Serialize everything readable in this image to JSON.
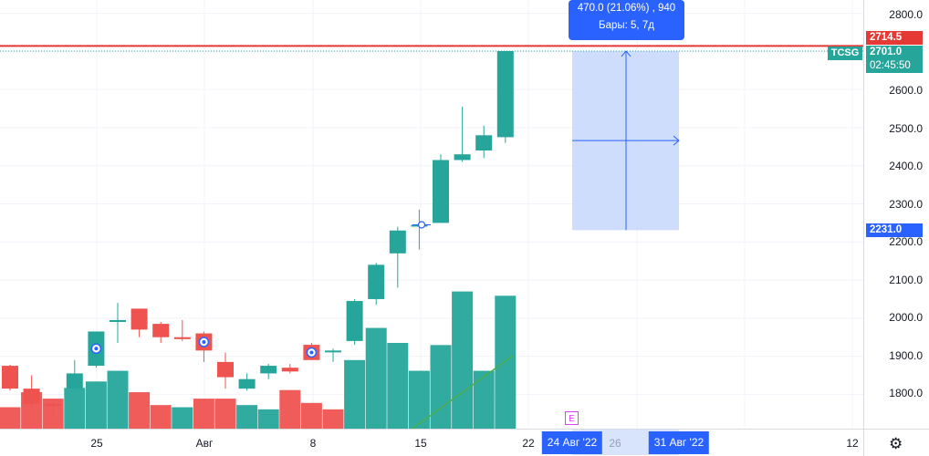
{
  "chart": {
    "symbol": "TCSG",
    "colors": {
      "up": "#26a69a",
      "down": "#ef5350",
      "alert_line": "#e53935",
      "measure": "#2962ff",
      "measure_fill": "#c7d7fb",
      "grid": "#f0f3fa"
    },
    "price_axis": {
      "min": 1710,
      "max": 2835,
      "ticks": [
        "2800.0",
        "2600.0",
        "2500.0",
        "2400.0",
        "2300.0",
        "2200.0",
        "2100.0",
        "2000.0",
        "1900.0",
        "1800.0"
      ],
      "alert_price": "2714.5",
      "last_price": "2701.0",
      "countdown": "02:45:50",
      "measure_low": "2231.0"
    },
    "time_axis": {
      "ticks": [
        "25",
        "Авг",
        "8",
        "15",
        "22",
        "26",
        "12"
      ],
      "cursor_label_1": "24 Авг '22",
      "cursor_label_2": "31 Авг '22"
    },
    "tooltip": {
      "line1": "470.0 (21.06%) , 940",
      "line2": "Бары: 5, 7д"
    },
    "earnings_marker": "E",
    "settings_icon": "gear-icon",
    "chart_data": {
      "type": "candlestick",
      "candles": [
        {
          "o": 1875,
          "h": 1878,
          "l": 1810,
          "c": 1815
        },
        {
          "o": 1815,
          "h": 1850,
          "l": 1765,
          "c": 1775
        },
        {
          "o": 1775,
          "h": 1780,
          "l": 1750,
          "c": 1770
        },
        {
          "o": 1815,
          "h": 1890,
          "l": 1810,
          "c": 1855
        },
        {
          "o": 1875,
          "h": 1965,
          "l": 1870,
          "c": 1965
        },
        {
          "o": 1990,
          "h": 2040,
          "l": 1935,
          "c": 1995
        },
        {
          "o": 2025,
          "h": 2025,
          "l": 1950,
          "c": 1970
        },
        {
          "o": 1985,
          "h": 1990,
          "l": 1935,
          "c": 1950
        },
        {
          "o": 1950,
          "h": 1995,
          "l": 1940,
          "c": 1945
        },
        {
          "o": 1960,
          "h": 1965,
          "l": 1885,
          "c": 1915
        },
        {
          "o": 1885,
          "h": 1910,
          "l": 1815,
          "c": 1845
        },
        {
          "o": 1815,
          "h": 1855,
          "l": 1810,
          "c": 1840
        },
        {
          "o": 1855,
          "h": 1880,
          "l": 1840,
          "c": 1875
        },
        {
          "o": 1870,
          "h": 1880,
          "l": 1855,
          "c": 1860
        },
        {
          "o": 1930,
          "h": 1935,
          "l": 1890,
          "c": 1890
        },
        {
          "o": 1915,
          "h": 1920,
          "l": 1885,
          "c": 1915
        },
        {
          "o": 1940,
          "h": 2050,
          "l": 1930,
          "c": 2045
        },
        {
          "o": 2050,
          "h": 2145,
          "l": 2035,
          "c": 2140
        },
        {
          "o": 2170,
          "h": 2240,
          "l": 2080,
          "c": 2230
        },
        {
          "o": 2245,
          "h": 2285,
          "l": 2180,
          "c": 2245
        },
        {
          "o": 2250,
          "h": 2430,
          "l": 2250,
          "c": 2415
        },
        {
          "o": 2415,
          "h": 2555,
          "l": 2410,
          "c": 2430
        },
        {
          "o": 2440,
          "h": 2505,
          "l": 2420,
          "c": 2480
        },
        {
          "o": 2475,
          "h": 2701,
          "l": 2460,
          "c": 2701
        }
      ],
      "volumes": [
        {
          "v": 0.1,
          "d": "down"
        },
        {
          "v": 0.17,
          "d": "down"
        },
        {
          "v": 0.14,
          "d": "down"
        },
        {
          "v": 0.19,
          "d": "up"
        },
        {
          "v": 0.22,
          "d": "up"
        },
        {
          "v": 0.27,
          "d": "up"
        },
        {
          "v": 0.17,
          "d": "down"
        },
        {
          "v": 0.11,
          "d": "down"
        },
        {
          "v": 0.1,
          "d": "up"
        },
        {
          "v": 0.14,
          "d": "down"
        },
        {
          "v": 0.14,
          "d": "down"
        },
        {
          "v": 0.11,
          "d": "up"
        },
        {
          "v": 0.09,
          "d": "up"
        },
        {
          "v": 0.18,
          "d": "down"
        },
        {
          "v": 0.12,
          "d": "down"
        },
        {
          "v": 0.09,
          "d": "down"
        },
        {
          "v": 0.32,
          "d": "up"
        },
        {
          "v": 0.47,
          "d": "up"
        },
        {
          "v": 0.4,
          "d": "up"
        },
        {
          "v": 0.27,
          "d": "up"
        },
        {
          "v": 0.39,
          "d": "up"
        },
        {
          "v": 0.64,
          "d": "up"
        },
        {
          "v": 0.27,
          "d": "up"
        },
        {
          "v": 0.62,
          "d": "up"
        }
      ],
      "event_markers_on_bars": [
        4,
        9,
        14
      ],
      "alert_price": 2714.5,
      "measure": {
        "from": 2231.0,
        "to": 2701.0,
        "change": 470.0,
        "percent": 21.06,
        "bars": 5
      }
    }
  }
}
